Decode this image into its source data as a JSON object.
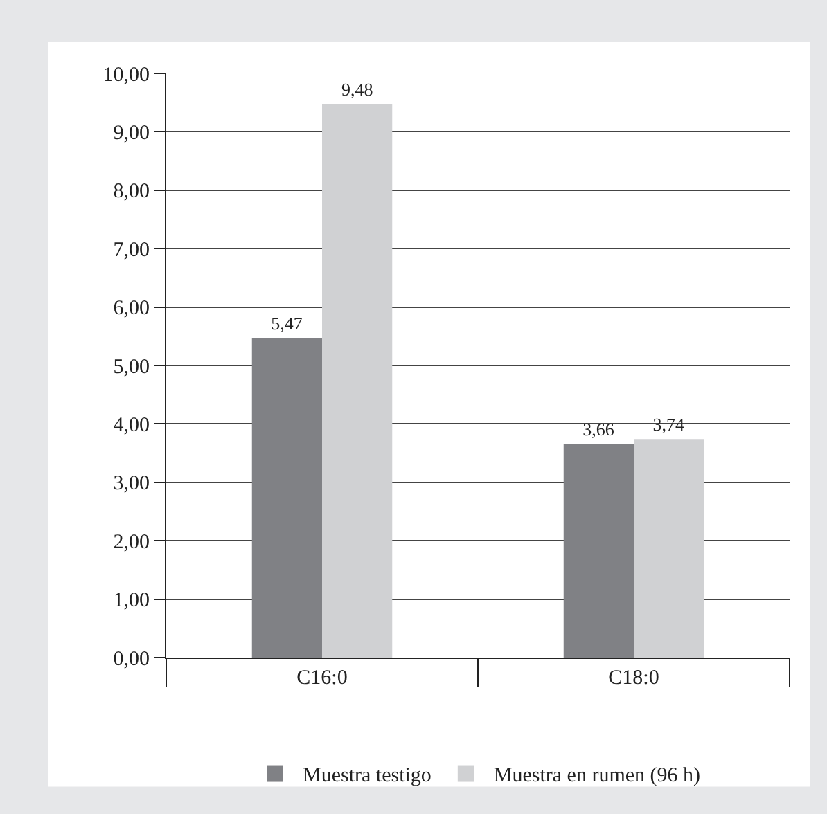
{
  "chart_data": {
    "type": "bar",
    "categories": [
      "C16:0",
      "C18:0"
    ],
    "series": [
      {
        "name": "Muestra testigo",
        "color": "#808185",
        "values": [
          5.47,
          3.66
        ],
        "value_labels": [
          "5,47",
          "3,66"
        ]
      },
      {
        "name": "Muestra en rumen (96 h)",
        "color": "#d0d1d3",
        "values": [
          9.48,
          3.74
        ],
        "value_labels": [
          "9,48",
          "3,74"
        ]
      }
    ],
    "ylim": [
      0,
      10
    ],
    "yticks": [
      {
        "value": 0,
        "label": "0,00"
      },
      {
        "value": 1,
        "label": "1,00"
      },
      {
        "value": 2,
        "label": "2,00"
      },
      {
        "value": 3,
        "label": "3,00"
      },
      {
        "value": 4,
        "label": "4,00"
      },
      {
        "value": 5,
        "label": "5,00"
      },
      {
        "value": 6,
        "label": "6,00"
      },
      {
        "value": 7,
        "label": "7,00"
      },
      {
        "value": 8,
        "label": "8,00"
      },
      {
        "value": 9,
        "label": "9,00"
      },
      {
        "value": 10,
        "label": "10,00"
      }
    ],
    "grid": "y",
    "legend": "bottom"
  }
}
